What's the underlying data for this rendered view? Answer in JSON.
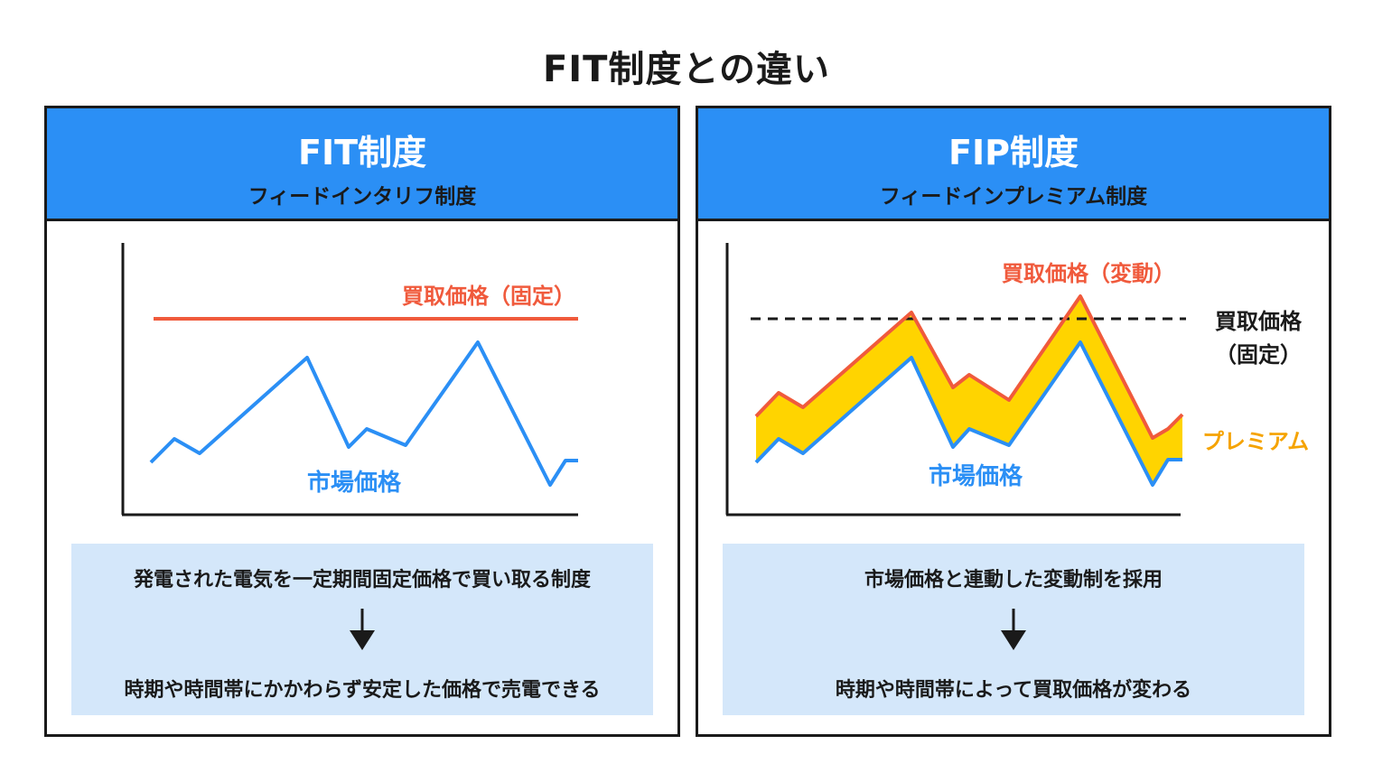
{
  "title": "FIT制度との違い",
  "colors": {
    "header_blue": "#2b8ff5",
    "buy_price_red": "#f05a3c",
    "market_blue": "#2b8ff5",
    "premium_fill": "#ffd400",
    "premium_label": "#f5a300",
    "desc_bg": "#d4e7fa",
    "border": "#1a1a1a"
  },
  "panels": {
    "fit": {
      "title": "FIT制度",
      "subtitle": "フィードインタリフ制度",
      "buy_price_label": "買取価格（固定）",
      "market_label": "市場価格",
      "desc_line1": "発電された電気を一定期間固定価格で買い取る制度",
      "desc_line2": "時期や時間帯にかかわらず安定した価格で売電できる"
    },
    "fip": {
      "title": "FIP制度",
      "subtitle": "フィードインプレミアム制度",
      "buy_price_label": "買取価格（変動）",
      "fixed_label_1": "買取価格",
      "fixed_label_2": "（固定）",
      "premium_label": "プレミアム",
      "market_label": "市場価格",
      "desc_line1": "市場価格と連動した変動制を採用",
      "desc_line2": "時期や時間帯によって買取価格が変わる"
    }
  }
}
